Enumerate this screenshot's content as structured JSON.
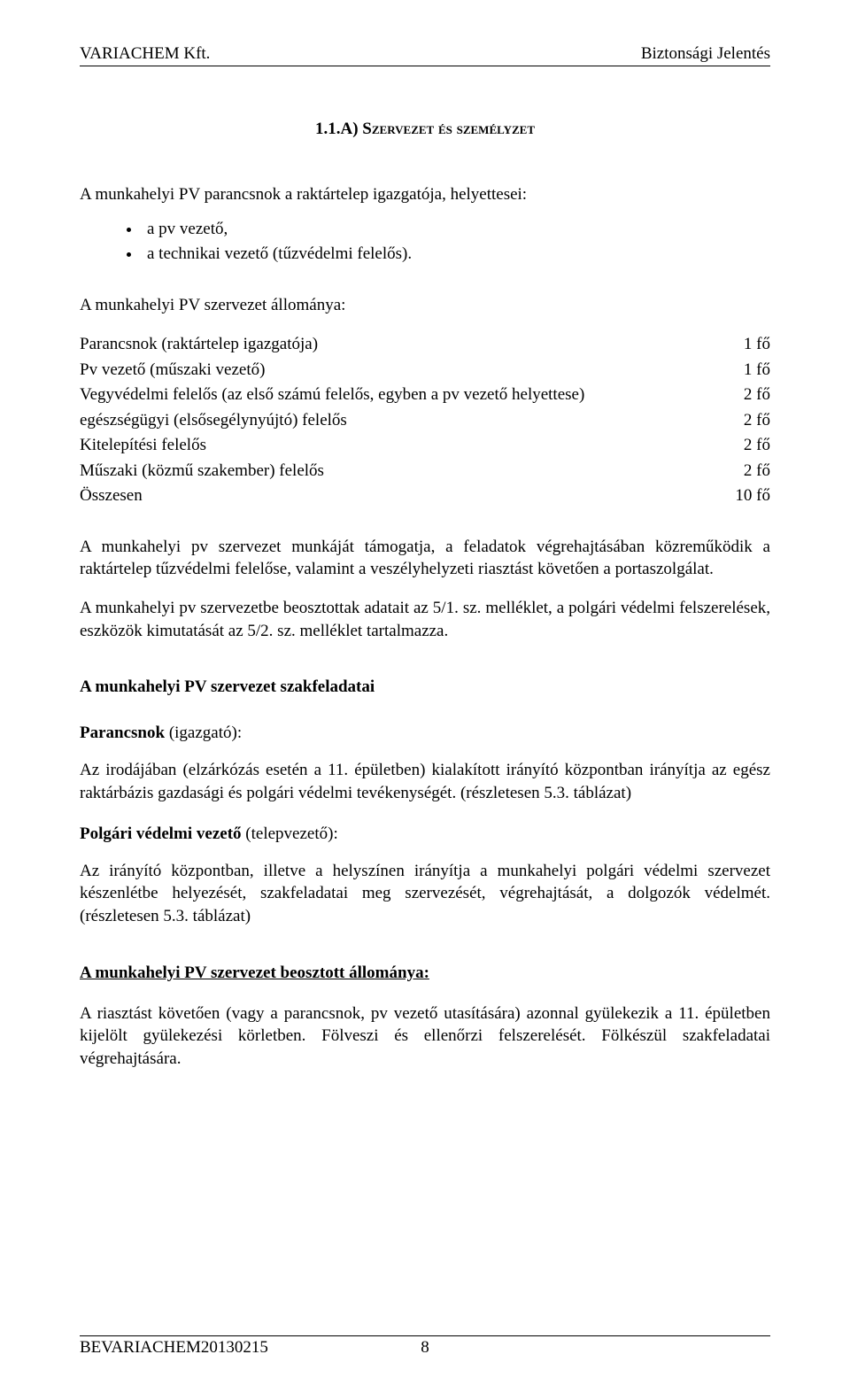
{
  "header": {
    "left": "VARIACHEM Kft.",
    "right": "Biztonsági Jelentés"
  },
  "title": {
    "number": "1.1.A) ",
    "text_sc": "Szervezet és személyzet"
  },
  "intro": "A munkahelyi PV parancsnok a raktártelep igazgatója, helyettesei:",
  "bullets": [
    "a pv vezető,",
    "a technikai vezető (tűzvédelmi felelős)."
  ],
  "staff_intro": "A munkahelyi PV szervezet állománya:",
  "staff_rows": [
    {
      "desc": "Parancsnok (raktártelep igazgatója)",
      "val": "1 fő"
    },
    {
      "desc": "Pv vezető (műszaki vezető)",
      "val": "1 fő"
    },
    {
      "desc": "Vegyvédelmi felelős (az első számú felelős, egyben a pv vezető helyettese)",
      "val": "2 fő"
    },
    {
      "desc": "egészségügyi (elsősegélynyújtó) felelős",
      "val": "2 fő"
    },
    {
      "desc": "Kitelepítési felelős",
      "val": "2 fő"
    },
    {
      "desc": "Műszaki (közmű szakember) felelős",
      "val": "2 fő"
    },
    {
      "desc": "Összesen",
      "val": "10 fő"
    }
  ],
  "para1": "A munkahelyi pv szervezet munkáját támogatja, a feladatok végrehajtásában közreműködik a raktártelep tűzvédelmi felelőse, valamint a veszélyhelyzeti riasztást követően a portaszolgálat.",
  "para2": "A munkahelyi pv szervezetbe beosztottak adatait az 5/1. sz. melléklet, a polgári védelmi felszerelések, eszközök kimutatását az 5/2. sz. melléklet tartalmazza.",
  "sec1_title": "A munkahelyi PV szervezet szakfeladatai",
  "sub1_bold": "Parancsnok",
  "sub1_rest": " (igazgató):",
  "sub1_text": "Az irodájában (elzárkózás esetén a 11. épületben) kialakított irányító központban irányítja az egész raktárbázis gazdasági és polgári védelmi tevékenységét. (részletesen 5.3. táblázat)",
  "sub2_bold": "Polgári védelmi vezető",
  "sub2_rest": " (telepvezető):",
  "sub2_text": "Az irányító központban, illetve a helyszínen irányítja a munkahelyi polgári védelmi szervezet készenlétbe helyezését, szakfeladatai meg szervezését, végrehajtását, a dolgozók védelmét. (részletesen 5.3. táblázat)",
  "sec2_title": "A munkahelyi PV szervezet beosztott állománya:",
  "sec2_text": "A riasztást követően (vagy a parancsnok, pv vezető utasítására) azonnal gyülekezik a 11. épületben kijelölt gyülekezési körletben. Fölveszi és ellenőrzi felszerelését. Fölkészül szakfeladatai végrehajtására.",
  "footer": {
    "left": "BEVARIACHEM20130215",
    "page": "8"
  }
}
